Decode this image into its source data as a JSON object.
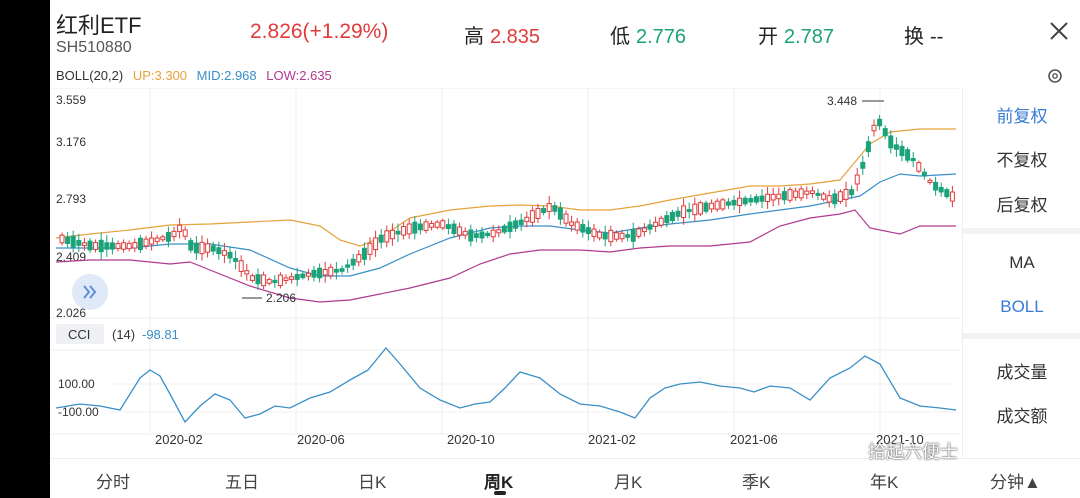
{
  "header": {
    "name": "红利ETF",
    "code": "SH510880",
    "price": "2.826(+1.29%)",
    "high_label": "高",
    "high_value": "2.835",
    "low_label": "低",
    "low_value": "2.776",
    "open_label": "开",
    "open_value": "2.787",
    "turnover_label": "换",
    "turnover_value": "--"
  },
  "indicator": {
    "boll_label": "BOLL(20,2)",
    "up": "UP:3.300",
    "mid": "MID:2.968",
    "low": "LOW:2.635"
  },
  "colors": {
    "up": "#e6a23c",
    "mid": "#3a8fc7",
    "low": "#b03a8f",
    "rise": "#e03b3b",
    "fall": "#1aa37a"
  },
  "price_axis": {
    "t1": "3.559",
    "t2": "3.176",
    "t3": "2.793",
    "t4": "2.409",
    "t5": "2.026"
  },
  "annotations": {
    "max": "3.448",
    "min": "2.206"
  },
  "cci": {
    "label": "CCI",
    "params": "(14)",
    "value": "-98.81",
    "level_hi": "100.00",
    "level_lo": "-100.00"
  },
  "x_axis": {
    "d1": "2020-02",
    "d2": "2020-06",
    "d3": "2020-10",
    "d4": "2021-02",
    "d5": "2021-06",
    "d6": "2021-10"
  },
  "side_menu": {
    "adj_forward": "前复权",
    "adj_none": "不复权",
    "adj_backward": "后复权",
    "ma": "MA",
    "boll": "BOLL",
    "volume": "成交量",
    "amount": "成交额"
  },
  "tabs": {
    "t0": "分时",
    "t1": "五日",
    "t2": "日K",
    "t3": "周K",
    "t4": "月K",
    "t5": "季K",
    "t6": "年K",
    "t7": "分钟▲"
  },
  "watermark": "拾起六便士"
}
